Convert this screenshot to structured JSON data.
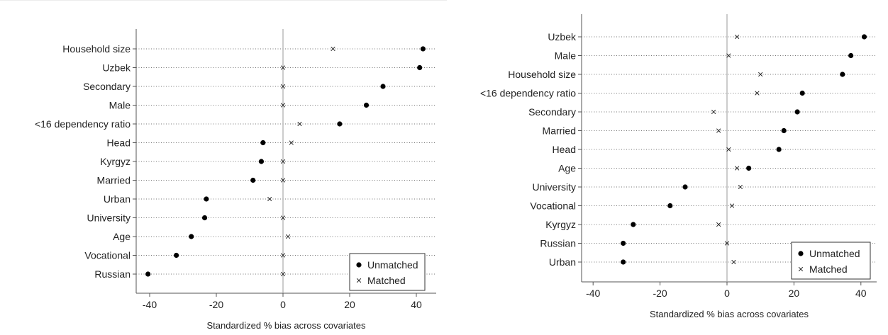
{
  "chart_data": [
    {
      "type": "scatter",
      "xlabel": "Standardized % bias across covariates",
      "xlim": [
        -44,
        46
      ],
      "xticks": [
        "-40",
        "-20",
        "0",
        "20",
        "40"
      ],
      "categories": [
        "Household size",
        "Uzbek",
        "Secondary",
        "Male",
        "<16 dependency ratio",
        "Head",
        "Kyrgyz",
        "Married",
        "Urban",
        "University",
        "Age",
        "Vocational",
        "Russian"
      ],
      "series": [
        {
          "name": "Unmatched",
          "marker": "dot",
          "values": [
            42,
            41,
            30,
            25,
            17,
            -6,
            -6.5,
            -9,
            -23,
            -23.5,
            -27.5,
            -32,
            -40.5
          ]
        },
        {
          "name": "Matched",
          "marker": "cross",
          "values": [
            15,
            0,
            0,
            0,
            5,
            2.5,
            0,
            0,
            -4,
            0,
            1.5,
            0,
            0
          ]
        }
      ],
      "legend_position": "bottom-right",
      "grid": "dotted horizontal guide lines, vertical reference line at 0"
    },
    {
      "type": "scatter",
      "xlabel": "Standardized % bias across covariates",
      "xlim": [
        -45,
        44
      ],
      "xticks": [
        "-40",
        "-20",
        "0",
        "20",
        "40"
      ],
      "categories": [
        "Uzbek",
        "Male",
        "Household size",
        "<16 dependency ratio",
        "Secondary",
        "Married",
        "Head",
        "Age",
        "University",
        "Vocational",
        "Kyrgyz",
        "Russian",
        "Urban"
      ],
      "series": [
        {
          "name": "Unmatched",
          "marker": "dot",
          "values": [
            41,
            37,
            34.5,
            22.5,
            21,
            17,
            15.5,
            6.5,
            -12.5,
            -17,
            -28,
            -31,
            -31
          ]
        },
        {
          "name": "Matched",
          "marker": "cross",
          "values": [
            3,
            0.5,
            10,
            9,
            -4,
            -2.5,
            0.5,
            3,
            4,
            1.5,
            -2.5,
            0,
            2
          ]
        }
      ],
      "legend_position": "bottom-right",
      "grid": "dotted horizontal guide lines, vertical reference line at 0"
    }
  ]
}
